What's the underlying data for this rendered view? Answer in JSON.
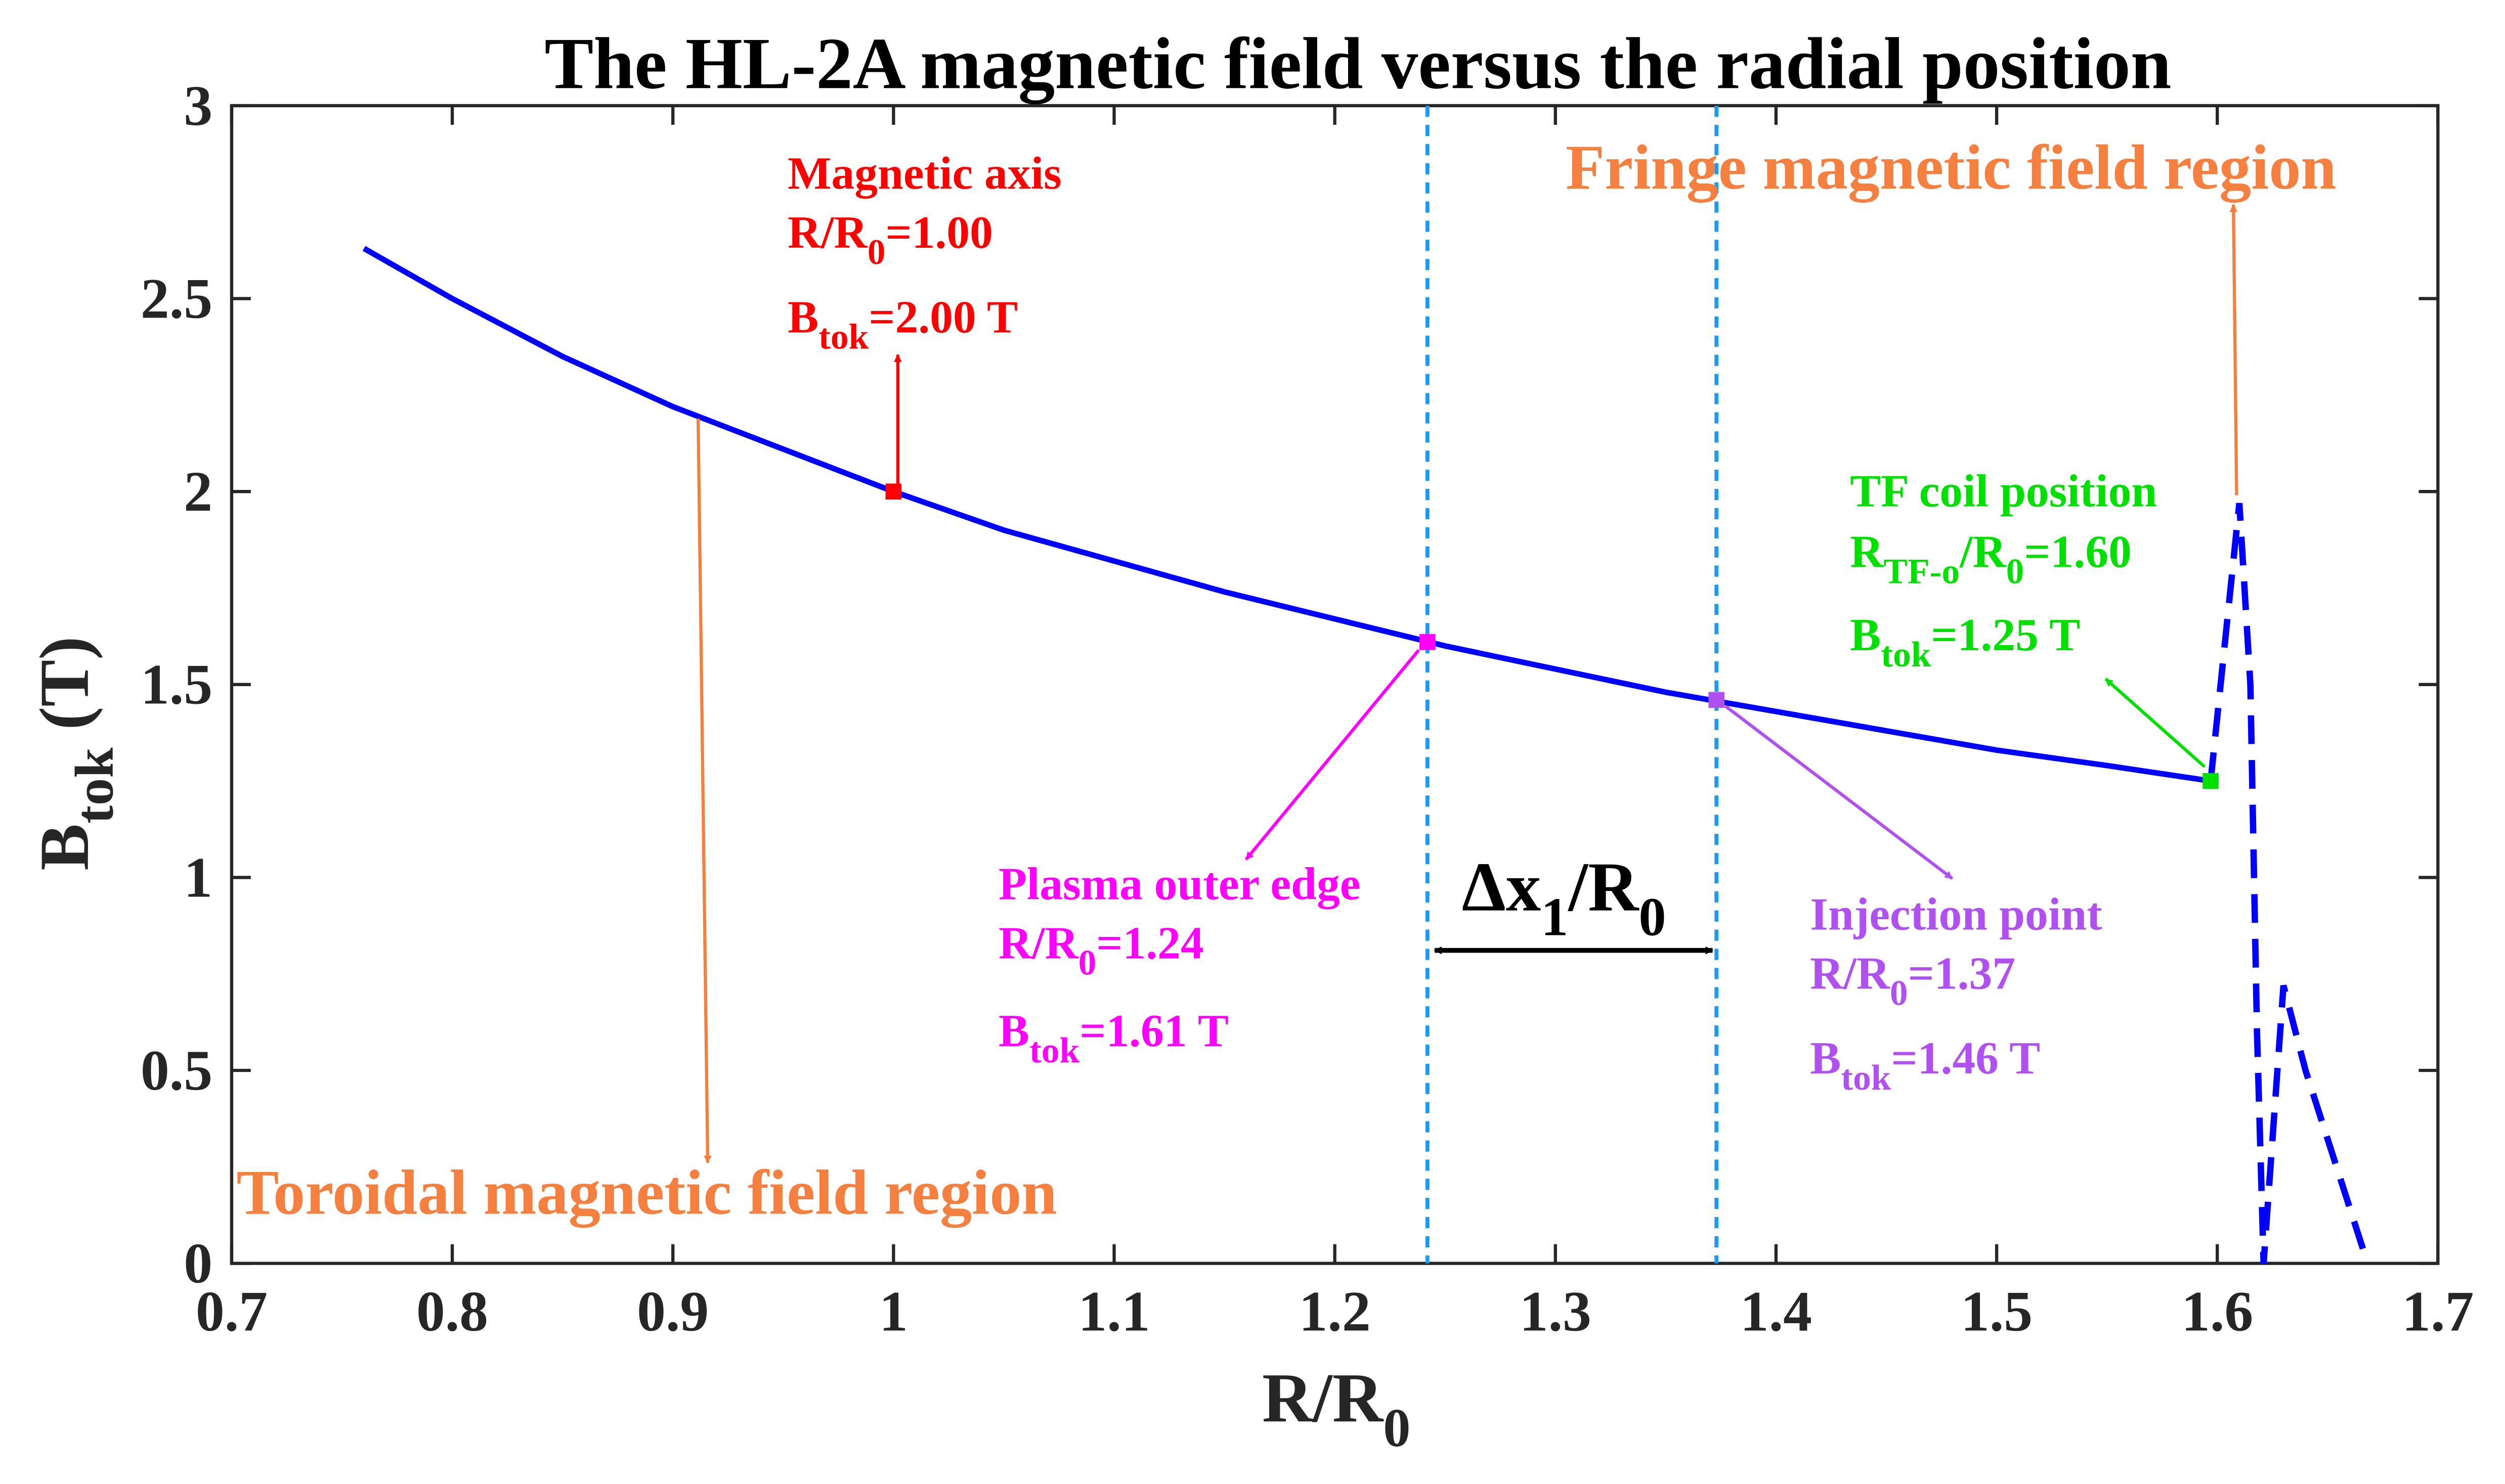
{
  "chart_data": {
    "type": "line",
    "title": "The  HL-2A magnetic field versus the radial position",
    "xlabel": [
      "R/R",
      {
        "sub": "0"
      }
    ],
    "ylabel": [
      "B",
      {
        "sub": "tok"
      },
      "  (T)"
    ],
    "xlim": [
      0.7,
      1.7
    ],
    "ylim": [
      0,
      3
    ],
    "xticks": [
      0.7,
      0.8,
      0.9,
      1,
      1.1,
      1.2,
      1.3,
      1.4,
      1.5,
      1.6,
      1.7
    ],
    "yticks": [
      0,
      0.5,
      1,
      1.5,
      2,
      2.5,
      3
    ],
    "series": [
      {
        "color": "#0000ff",
        "style": "solid",
        "x": [
          0.76,
          0.8,
          0.85,
          0.9,
          0.95,
          1.0,
          1.05,
          1.1,
          1.15,
          1.2,
          1.25,
          1.3,
          1.35,
          1.4,
          1.45,
          1.5,
          1.55,
          1.597
        ],
        "values": [
          2.63,
          2.5,
          2.35,
          2.22,
          2.11,
          2.0,
          1.9,
          1.82,
          1.74,
          1.67,
          1.6,
          1.54,
          1.48,
          1.43,
          1.38,
          1.33,
          1.29,
          1.25
        ]
      },
      {
        "color": "#0000ff",
        "style": "dashed",
        "x": [
          1.597,
          1.61,
          1.615,
          1.618,
          1.621,
          1.63,
          1.64,
          1.667
        ],
        "values": [
          1.25,
          1.97,
          1.5,
          0.6,
          0.0,
          0.72,
          0.5,
          0.02
        ]
      }
    ],
    "points": [
      {
        "x": 1.0,
        "y": 2.0,
        "color": "#ff0000"
      },
      {
        "x": 1.242,
        "y": 1.61,
        "color": "#ff00ff"
      },
      {
        "x": 1.373,
        "y": 1.46,
        "color": "#b050f0"
      },
      {
        "x": 1.597,
        "y": 1.25,
        "color": "#00e000"
      }
    ],
    "annotations": [
      {
        "color": "#ff0000",
        "lines": [
          [
            "Magnetic axis"
          ],
          [
            "R/R",
            {
              "sub": "0"
            },
            "=1.00"
          ],
          [
            "B",
            {
              "sub": "tok"
            },
            "=2.00 T"
          ]
        ]
      },
      {
        "color": "#ff00ff",
        "lines": [
          [
            "Plasma outer edge"
          ],
          [
            "R/R",
            {
              "sub": "0"
            },
            "=1.24"
          ],
          [
            "B",
            {
              "sub": "tok"
            },
            "=1.61 T"
          ]
        ]
      },
      {
        "color": "#b050f0",
        "lines": [
          [
            "Injection point"
          ],
          [
            "R/R",
            {
              "sub": "0"
            },
            "=1.37"
          ],
          [
            "B",
            {
              "sub": "tok"
            },
            "=1.46 T"
          ]
        ]
      },
      {
        "color": "#00e000",
        "lines": [
          [
            "TF coil position"
          ],
          [
            "R",
            {
              "sub": "TF-o"
            },
            "/R",
            {
              "sub": "0"
            },
            "=1.60"
          ],
          [
            "B",
            {
              "sub": "tok"
            },
            "=1.25 T"
          ]
        ]
      }
    ],
    "vlines": {
      "x": [
        1.242,
        1.373
      ],
      "color": "#1e9bf0"
    },
    "delta_label": [
      "Δx",
      {
        "sub": "1"
      },
      "/R",
      {
        "sub": "0"
      }
    ],
    "regions": [
      {
        "text": "Toroidal magnetic field region",
        "color": "#f57f3f"
      },
      {
        "text": "Fringe magnetic field region",
        "color": "#f57f3f"
      }
    ]
  }
}
